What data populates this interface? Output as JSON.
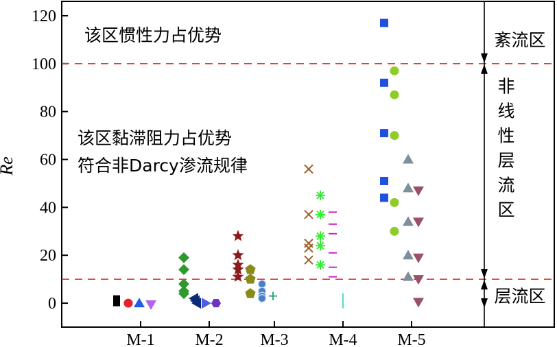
{
  "chart_data": {
    "type": "scatter",
    "xlabel": "",
    "ylabel": "Re",
    "categories": [
      "M-1",
      "M-2",
      "M-3",
      "M-4",
      "M-5"
    ],
    "ylim": [
      -10,
      126
    ],
    "yticks": [
      0,
      20,
      40,
      60,
      80,
      100,
      120
    ],
    "grid": false,
    "hlines": [
      {
        "y": 100,
        "color": "#e53935",
        "style": "dashed"
      },
      {
        "y": 10,
        "color": "#e53935",
        "style": "dashed"
      }
    ],
    "regions": [
      {
        "label": "紊流区",
        "from": 100,
        "to": 120
      },
      {
        "label": "非线性层流区",
        "from": 10,
        "to": 100
      },
      {
        "label": "层流区",
        "from": -2,
        "to": 10
      }
    ],
    "annotations": [
      "该区惯性力占优势",
      "该区黏滞阻力占优势",
      "符合非Darcy渗流规律"
    ],
    "series": [
      {
        "category": "M-1",
        "marker": "square",
        "color": "#000000",
        "x": [
          -0.35
        ],
        "y": [
          1
        ]
      },
      {
        "category": "M-1",
        "marker": "circle",
        "color": "#e8202a",
        "x": [
          -0.18
        ],
        "y": [
          0
        ]
      },
      {
        "category": "M-1",
        "marker": "triangle-up",
        "color": "#1f5fe0",
        "x": [
          -0.02
        ],
        "y": [
          0
        ]
      },
      {
        "category": "M-1",
        "marker": "triangle-down",
        "color": "#b560ee",
        "x": [
          0.15
        ],
        "y": [
          -0.5
        ]
      },
      {
        "category": "M-2",
        "marker": "diamond",
        "color": "#2e9a2e",
        "x": [
          -0.37,
          -0.37,
          -0.37,
          -0.37,
          -0.37
        ],
        "y": [
          19,
          14,
          8,
          5,
          4
        ]
      },
      {
        "category": "M-2",
        "marker": "triangle-left",
        "color": "#0a2a7a",
        "x": [
          -0.22,
          -0.2,
          -0.18
        ],
        "y": [
          2,
          1,
          0
        ]
      },
      {
        "category": "M-2",
        "marker": "triangle-right",
        "color": "#4d5de8",
        "x": [
          -0.05
        ],
        "y": [
          0
        ]
      },
      {
        "category": "M-2",
        "marker": "hexagon",
        "color": "#6a35c4",
        "x": [
          0.1
        ],
        "y": [
          0
        ]
      },
      {
        "category": "M-3",
        "marker": "star",
        "color": "#8b1a1a",
        "x": [
          -0.53,
          -0.53,
          -0.53,
          -0.53,
          -0.53
        ],
        "y": [
          28,
          20,
          16,
          14,
          11
        ]
      },
      {
        "category": "M-3",
        "marker": "pentagon",
        "color": "#8a8a1a",
        "x": [
          -0.35,
          -0.35,
          -0.35
        ],
        "y": [
          14,
          10,
          4
        ]
      },
      {
        "category": "M-3",
        "marker": "sphere",
        "color": "#4a7fc8",
        "x": [
          -0.18,
          -0.18,
          -0.18,
          -0.18
        ],
        "y": [
          8,
          5,
          3,
          2
        ]
      },
      {
        "category": "M-3",
        "marker": "plus",
        "color": "#2aaa8a",
        "x": [
          -0.02
        ],
        "y": [
          3
        ]
      },
      {
        "category": "M-4",
        "marker": "x",
        "color": "#a0602a",
        "x": [
          -0.5,
          -0.5,
          -0.5,
          -0.5,
          -0.5
        ],
        "y": [
          56,
          37,
          25,
          23,
          18
        ]
      },
      {
        "category": "M-4",
        "marker": "asterisk",
        "color": "#33ee33",
        "x": [
          -0.33,
          -0.33,
          -0.33,
          -0.33,
          -0.33
        ],
        "y": [
          45,
          37,
          28,
          24,
          16
        ]
      },
      {
        "category": "M-4",
        "marker": "hbar",
        "color": "#cc22cc",
        "x": [
          -0.15,
          -0.15,
          -0.15,
          -0.15,
          -0.15,
          -0.15
        ],
        "y": [
          38,
          33,
          29,
          21,
          15,
          11
        ]
      },
      {
        "category": "M-4",
        "marker": "vbar",
        "color": "#66ddcc",
        "x": [
          0.0
        ],
        "y": [
          1
        ]
      },
      {
        "category": "M-5",
        "marker": "square",
        "color": "#2050dd",
        "x": [
          -0.4,
          -0.4,
          -0.4,
          -0.4,
          -0.4
        ],
        "y": [
          117,
          92,
          71,
          51,
          44
        ]
      },
      {
        "category": "M-5",
        "marker": "circle",
        "color": "#8ecc2a",
        "x": [
          -0.25,
          -0.25,
          -0.25,
          -0.25,
          -0.25
        ],
        "y": [
          97,
          87,
          70,
          42,
          30
        ]
      },
      {
        "category": "M-5",
        "marker": "triangle-up",
        "color": "#7f8f9a",
        "x": [
          -0.05,
          -0.05,
          -0.05,
          -0.05,
          -0.05
        ],
        "y": [
          60,
          48,
          34,
          20,
          11
        ]
      },
      {
        "category": "M-5",
        "marker": "triangle-down",
        "color": "#9a5068",
        "x": [
          0.1,
          0.1,
          0.1,
          0.1,
          0.1
        ],
        "y": [
          47,
          34,
          19,
          10,
          0.5
        ]
      }
    ]
  }
}
